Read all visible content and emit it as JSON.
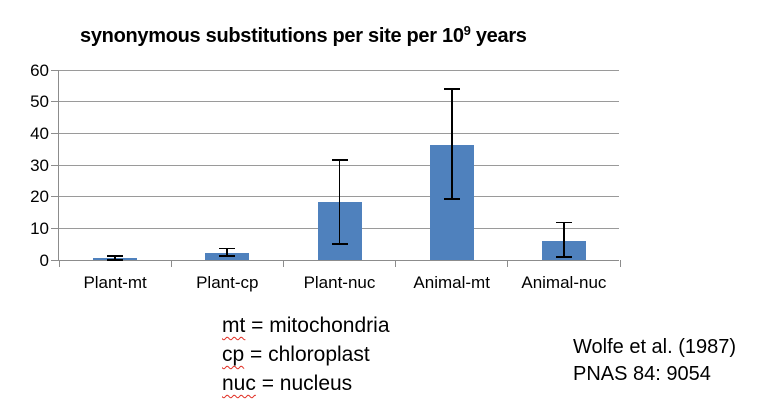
{
  "title": {
    "prefix": "synonymous substitutions per site per 10",
    "superscript": "9",
    "suffix": " years"
  },
  "chart_data": {
    "type": "bar",
    "title": "synonymous substitutions per site per 10^9 years",
    "categories": [
      "Plant-mt",
      "Plant-cp",
      "Plant-nuc",
      "Animal-mt",
      "Animal-nuc"
    ],
    "values": [
      0.5,
      2.1,
      18.3,
      36.3,
      6.1
    ],
    "error_low": [
      0.1,
      1.2,
      5.0,
      19.2,
      0.9
    ],
    "error_high": [
      1.3,
      3.6,
      31.5,
      54.0,
      11.8
    ],
    "xlabel": "",
    "ylabel": "",
    "ylim": [
      0,
      60
    ],
    "ytick_step": 10,
    "grid": true,
    "legend_position": "none",
    "bar_color": "#4F81BD",
    "error_color": "#000000",
    "gridline_color": "#9a9a9a",
    "axis_color": "#8c8c8c"
  },
  "legend": {
    "separator": " = ",
    "items": [
      {
        "term": "mt",
        "definition": "mitochondria"
      },
      {
        "term": "cp",
        "definition": "chloroplast"
      },
      {
        "term": "nuc",
        "definition": "nucleus"
      }
    ],
    "squiggle_color": "#e02b20"
  },
  "citation": {
    "line1": "Wolfe et al. (1987)",
    "line2": "PNAS 84: 9054"
  }
}
